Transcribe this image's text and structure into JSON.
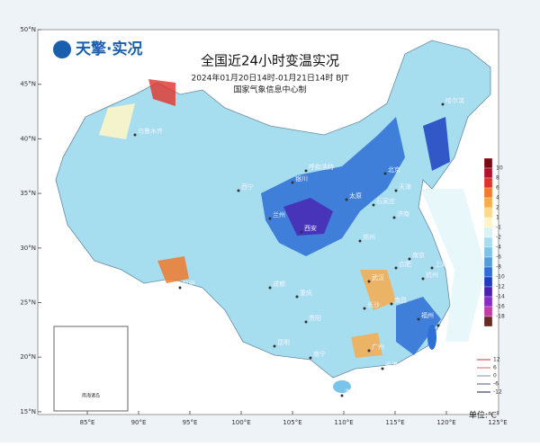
{
  "logo": "天擎·实况",
  "title": "全国近24小时变温实况",
  "subtitle": "2024年01月20日14时-01月21日14时 BJT",
  "producer": "国家气象信息中心制",
  "lat_labels": [
    "50°N",
    "45°N",
    "40°N",
    "35°N",
    "30°N",
    "25°N",
    "20°N",
    "15°N"
  ],
  "lon_labels": [
    "85°E",
    "90°E",
    "95°E",
    "100°E",
    "105°E",
    "110°E",
    "115°E",
    "120°E",
    "125°E"
  ],
  "cities": [
    "哈尔滨",
    "乌鲁木齐",
    "呼和浩特",
    "北京",
    "天津",
    "石家庄",
    "太原",
    "济南",
    "西宁",
    "兰州",
    "银川",
    "郑州",
    "西安",
    "拉萨",
    "成都",
    "重庆",
    "武汉",
    "合肥",
    "南京",
    "上海",
    "杭州",
    "长沙",
    "南昌",
    "福州",
    "贵阳",
    "昆明",
    "南宁",
    "广州",
    "香港",
    "海口",
    "台北"
  ],
  "inset_label": "南海诸岛",
  "colorbar": {
    "labels": [
      10,
      8,
      6,
      4,
      2,
      1,
      -1,
      -2,
      -4,
      -6,
      -8,
      -10,
      -12,
      -14,
      -16,
      -18
    ],
    "colors": [
      "#7a0a12",
      "#b3122a",
      "#e0322b",
      "#f07a2e",
      "#f7ac4e",
      "#fbd88a",
      "#fdf5c8",
      "#d8f2f6",
      "#a6def0",
      "#78c4ea",
      "#4f9fe0",
      "#2d6fd6",
      "#1d3fbf",
      "#4a22b0",
      "#8a2bc2",
      "#c43aa8",
      "#6a2a24"
    ]
  },
  "contour_legend": [
    {
      "value": 12,
      "color": "#e05050"
    },
    {
      "value": 6,
      "color": "#e08080"
    },
    {
      "value": 0,
      "color": "#a0a0c0"
    },
    {
      "value": -6,
      "color": "#7070a0"
    },
    {
      "value": -12,
      "color": "#404060"
    }
  ],
  "unit": "单位:℃"
}
